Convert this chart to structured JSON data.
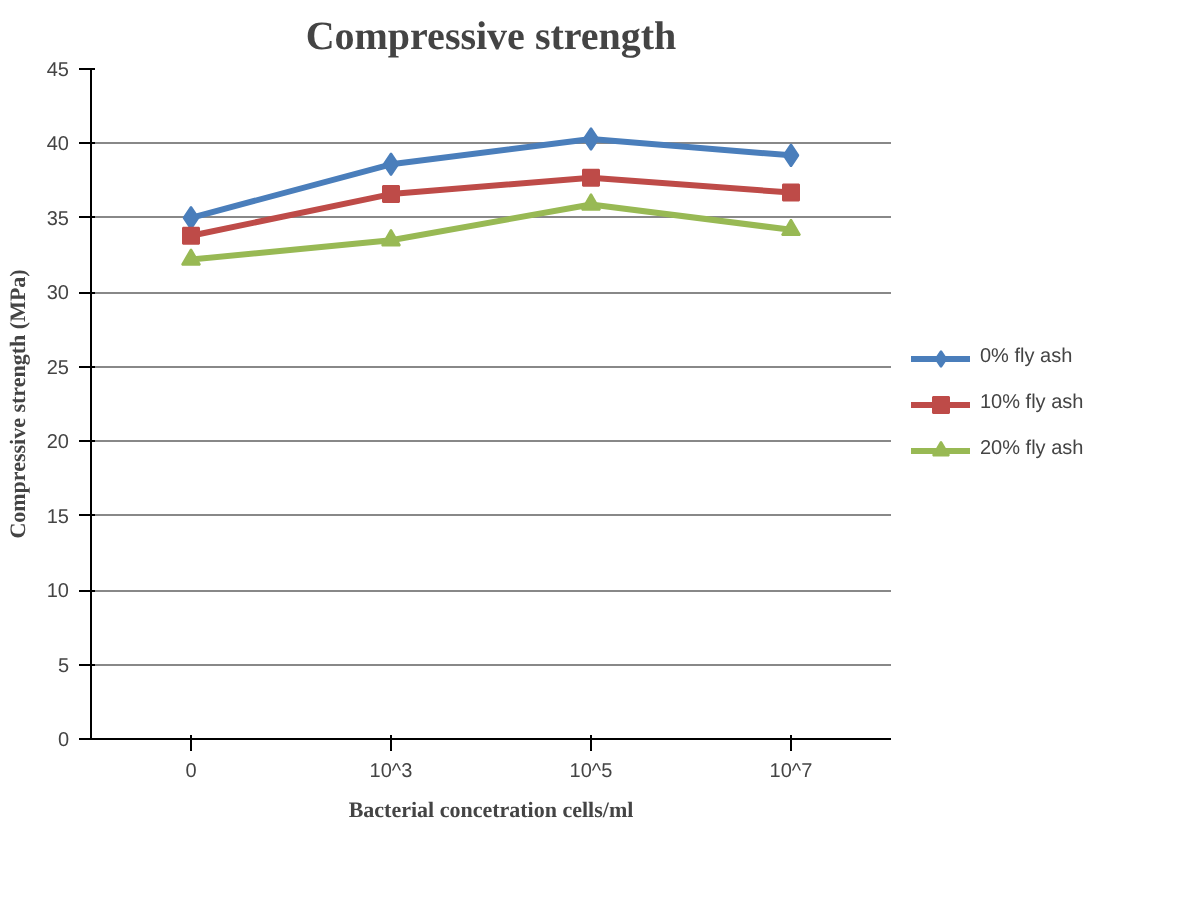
{
  "chart_data": {
    "type": "line",
    "title": "Compressive strength",
    "xlabel": "Bacterial concetration cells/ml",
    "ylabel": "Compressive strength (MPa)",
    "categories": [
      "0",
      "10^3",
      "10^5",
      "10^7"
    ],
    "series": [
      {
        "name": "0% fly ash",
        "color": "#4a7ebb",
        "marker": "diamond",
        "values": [
          35.0,
          38.6,
          40.3,
          39.2
        ]
      },
      {
        "name": "10% fly ash",
        "color": "#be4b48",
        "marker": "square",
        "values": [
          33.8,
          36.6,
          37.7,
          36.7
        ]
      },
      {
        "name": "20% fly ash",
        "color": "#98b954",
        "marker": "triangle",
        "values": [
          32.2,
          33.5,
          35.9,
          34.2
        ]
      }
    ],
    "ylim": [
      0,
      45
    ],
    "yticks": [
      0,
      5,
      10,
      15,
      20,
      25,
      30,
      35,
      40,
      45
    ],
    "grid": "y",
    "legend": "right",
    "line_style": "solid"
  }
}
